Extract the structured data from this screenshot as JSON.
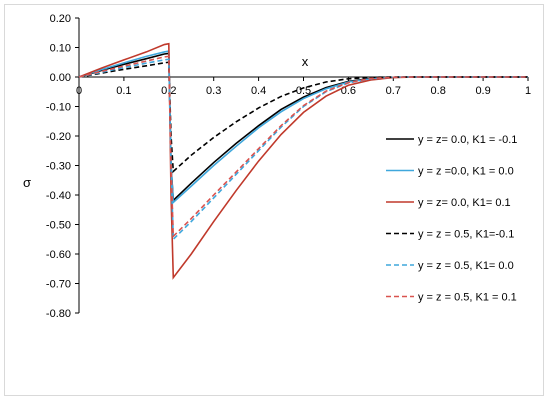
{
  "chart_data": {
    "type": "line",
    "title": "",
    "xlabel": "x",
    "ylabel": "σ",
    "xlim": [
      0,
      1
    ],
    "ylim": [
      -0.8,
      0.2
    ],
    "x_ticks": [
      "0",
      "0.1",
      "0.2",
      "0.3",
      "0.4",
      "0.5",
      "0.6",
      "0.7",
      "0.8",
      "0.9",
      "1"
    ],
    "y_ticks": [
      "0.20",
      "0.10",
      "0.00",
      "-0.10",
      "-0.20",
      "-0.30",
      "-0.40",
      "-0.50",
      "-0.60",
      "-0.70",
      "-0.80"
    ],
    "grid": false,
    "legend_position": "right",
    "series": [
      {
        "name": "y = z= 0.0, K1 = -0.1",
        "color": "#000000",
        "dash": "solid",
        "points": [
          [
            0,
            0
          ],
          [
            0.05,
            0.022
          ],
          [
            0.1,
            0.043
          ],
          [
            0.15,
            0.062
          ],
          [
            0.19,
            0.078
          ],
          [
            0.2,
            0.08
          ],
          [
            0.205,
            -0.3
          ],
          [
            0.21,
            -0.418
          ],
          [
            0.25,
            -0.36
          ],
          [
            0.3,
            -0.29
          ],
          [
            0.35,
            -0.225
          ],
          [
            0.4,
            -0.165
          ],
          [
            0.45,
            -0.11
          ],
          [
            0.5,
            -0.068
          ],
          [
            0.55,
            -0.036
          ],
          [
            0.6,
            -0.015
          ],
          [
            0.65,
            -0.005
          ],
          [
            0.7,
            -0.001
          ],
          [
            0.75,
            0
          ],
          [
            1,
            0
          ]
        ]
      },
      {
        "name": "y = z =0.0, K1 = 0.0",
        "color": "#3fa7dc",
        "dash": "solid",
        "points": [
          [
            0,
            0
          ],
          [
            0.05,
            0.025
          ],
          [
            0.1,
            0.048
          ],
          [
            0.15,
            0.07
          ],
          [
            0.19,
            0.085
          ],
          [
            0.2,
            0.088
          ],
          [
            0.205,
            -0.3
          ],
          [
            0.21,
            -0.425
          ],
          [
            0.25,
            -0.37
          ],
          [
            0.3,
            -0.3
          ],
          [
            0.35,
            -0.235
          ],
          [
            0.4,
            -0.172
          ],
          [
            0.45,
            -0.118
          ],
          [
            0.5,
            -0.073
          ],
          [
            0.55,
            -0.04
          ],
          [
            0.6,
            -0.017
          ],
          [
            0.65,
            -0.006
          ],
          [
            0.7,
            -0.001
          ],
          [
            0.75,
            0
          ],
          [
            1,
            0
          ]
        ]
      },
      {
        "name": "y = z= 0.0, K1= 0.1",
        "color": "#c0392b",
        "dash": "solid",
        "points": [
          [
            0,
            0
          ],
          [
            0.05,
            0.03
          ],
          [
            0.1,
            0.058
          ],
          [
            0.15,
            0.085
          ],
          [
            0.19,
            0.11
          ],
          [
            0.2,
            0.113
          ],
          [
            0.205,
            -0.4
          ],
          [
            0.21,
            -0.68
          ],
          [
            0.25,
            -0.6
          ],
          [
            0.3,
            -0.49
          ],
          [
            0.35,
            -0.385
          ],
          [
            0.4,
            -0.285
          ],
          [
            0.45,
            -0.195
          ],
          [
            0.5,
            -0.12
          ],
          [
            0.55,
            -0.065
          ],
          [
            0.6,
            -0.028
          ],
          [
            0.65,
            -0.01
          ],
          [
            0.7,
            -0.002
          ],
          [
            0.75,
            0
          ],
          [
            1,
            0
          ]
        ]
      },
      {
        "name": "y = z = 0.5, K1=-0.1",
        "color": "#000000",
        "dash": "dashed",
        "points": [
          [
            0,
            0
          ],
          [
            0.05,
            0.013
          ],
          [
            0.1,
            0.026
          ],
          [
            0.15,
            0.038
          ],
          [
            0.19,
            0.048
          ],
          [
            0.2,
            0.05
          ],
          [
            0.205,
            -0.2
          ],
          [
            0.21,
            -0.32
          ],
          [
            0.25,
            -0.265
          ],
          [
            0.3,
            -0.205
          ],
          [
            0.35,
            -0.152
          ],
          [
            0.4,
            -0.105
          ],
          [
            0.45,
            -0.066
          ],
          [
            0.5,
            -0.037
          ],
          [
            0.55,
            -0.017
          ],
          [
            0.6,
            -0.006
          ],
          [
            0.65,
            -0.001
          ],
          [
            0.7,
            0
          ],
          [
            1,
            0
          ]
        ]
      },
      {
        "name": "y = z = 0.5, K1= 0.0",
        "color": "#3fa7dc",
        "dash": "dashed",
        "points": [
          [
            0,
            0
          ],
          [
            0.05,
            0.016
          ],
          [
            0.1,
            0.032
          ],
          [
            0.15,
            0.047
          ],
          [
            0.19,
            0.058
          ],
          [
            0.2,
            0.06
          ],
          [
            0.205,
            -0.3
          ],
          [
            0.21,
            -0.55
          ],
          [
            0.25,
            -0.49
          ],
          [
            0.3,
            -0.41
          ],
          [
            0.35,
            -0.33
          ],
          [
            0.4,
            -0.25
          ],
          [
            0.45,
            -0.17
          ],
          [
            0.5,
            -0.1
          ],
          [
            0.55,
            -0.05
          ],
          [
            0.6,
            -0.02
          ],
          [
            0.65,
            -0.006
          ],
          [
            0.7,
            -0.001
          ],
          [
            0.75,
            0
          ],
          [
            1,
            0
          ]
        ]
      },
      {
        "name": "y = z = 0.5, K1 = 0.1",
        "color": "#d9534f",
        "dash": "dashed",
        "points": [
          [
            0,
            0
          ],
          [
            0.05,
            0.019
          ],
          [
            0.1,
            0.037
          ],
          [
            0.15,
            0.054
          ],
          [
            0.19,
            0.068
          ],
          [
            0.2,
            0.07
          ],
          [
            0.205,
            -0.3
          ],
          [
            0.21,
            -0.54
          ],
          [
            0.25,
            -0.48
          ],
          [
            0.3,
            -0.4
          ],
          [
            0.35,
            -0.322
          ],
          [
            0.4,
            -0.243
          ],
          [
            0.45,
            -0.165
          ],
          [
            0.5,
            -0.097
          ],
          [
            0.55,
            -0.048
          ],
          [
            0.6,
            -0.019
          ],
          [
            0.65,
            -0.005
          ],
          [
            0.7,
            -0.001
          ],
          [
            0.75,
            0
          ],
          [
            1,
            0
          ]
        ]
      }
    ]
  }
}
